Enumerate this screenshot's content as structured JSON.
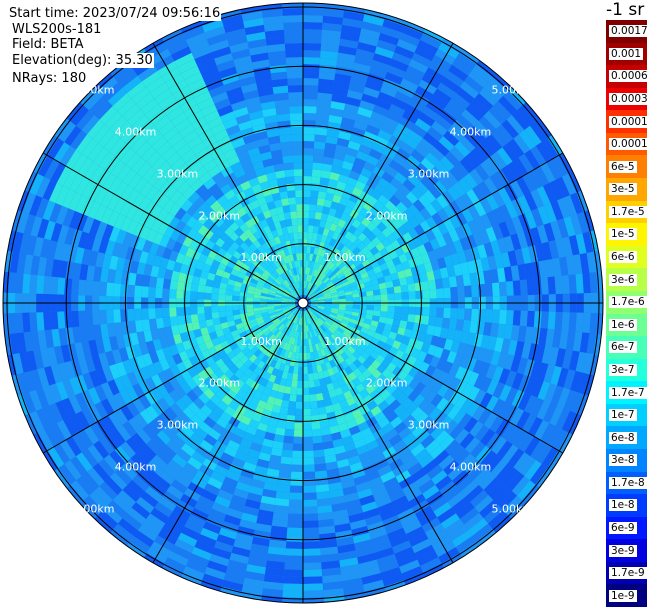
{
  "header": {
    "start_time": "Start time: 2023/07/24 09:56:16",
    "instrument": "WLS200s-181",
    "field": "Field: BETA",
    "elevation": "Elevation(deg): 35.30",
    "nrays": "NRays: 180"
  },
  "plot": {
    "center_label": "",
    "range_rings_km": [
      1,
      2,
      3,
      4,
      5
    ],
    "ring_labels": [
      "1.00km",
      "2.00km",
      "3.00km",
      "4.00km",
      "5.00km"
    ],
    "ray_count": 180,
    "spoke_step_deg": 30
  },
  "colorbar": {
    "unit": "-1 sr",
    "levels": [
      {
        "label": "0.0017",
        "color": "#800000"
      },
      {
        "label": "0.001",
        "color": "#a00000"
      },
      {
        "label": "0.0006",
        "color": "#c40000"
      },
      {
        "label": "0.0003",
        "color": "#ee0000"
      },
      {
        "label": "0.00017",
        "color": "#ff3000"
      },
      {
        "label": "0.0001",
        "color": "#ff5a00"
      },
      {
        "label": "6e-5",
        "color": "#ff8000"
      },
      {
        "label": "3e-5",
        "color": "#ffa600"
      },
      {
        "label": "1.7e-5",
        "color": "#ffd000"
      },
      {
        "label": "1e-5",
        "color": "#fff500"
      },
      {
        "label": "6e-6",
        "color": "#e0ff20"
      },
      {
        "label": "3e-6",
        "color": "#b8ff48"
      },
      {
        "label": "1.7e-6",
        "color": "#90ff70"
      },
      {
        "label": "1e-6",
        "color": "#6cff94"
      },
      {
        "label": "6e-7",
        "color": "#48ffb8"
      },
      {
        "label": "3e-7",
        "color": "#24ffdc"
      },
      {
        "label": "1.7e-7",
        "color": "#00f4ff"
      },
      {
        "label": "1e-7",
        "color": "#00cfff"
      },
      {
        "label": "6e-8",
        "color": "#00a8ff"
      },
      {
        "label": "3e-8",
        "color": "#0084ff"
      },
      {
        "label": "1.7e-8",
        "color": "#0060ff"
      },
      {
        "label": "1e-8",
        "color": "#003cff"
      },
      {
        "label": "6e-9",
        "color": "#0018ff"
      },
      {
        "label": "3e-9",
        "color": "#0000e0"
      },
      {
        "label": "1.7e-9",
        "color": "#0000b0"
      },
      {
        "label": "1e-9",
        "color": "#000080"
      }
    ]
  }
}
